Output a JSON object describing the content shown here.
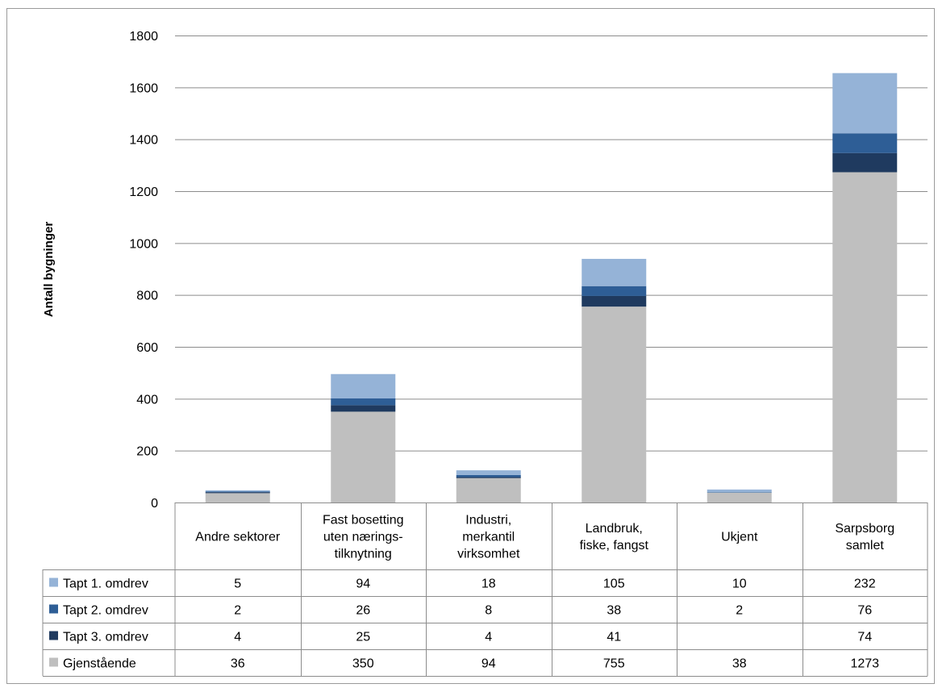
{
  "chart_data": {
    "type": "bar",
    "stacked": true,
    "ylabel": "Antall bygninger",
    "ylim": [
      0,
      1800
    ],
    "yticks": [
      0,
      200,
      400,
      600,
      800,
      1000,
      1200,
      1400,
      1600,
      1800
    ],
    "grid": true,
    "legend_placement": "data-table",
    "categories": [
      [
        "Andre sektorer"
      ],
      [
        "Fast bosetting",
        "uten nærings-",
        "tilknytning"
      ],
      [
        "Industri,",
        "merkantil",
        "virksomhet"
      ],
      [
        "Landbruk,",
        "fiske, fangst"
      ],
      [
        "Ukjent"
      ],
      [
        "Sarpsborg",
        "samlet"
      ]
    ],
    "series": [
      {
        "name": "Gjenstående",
        "color": "#bfbfbf",
        "values": [
          36,
          350,
          94,
          755,
          38,
          1273
        ]
      },
      {
        "name": "Tapt 3. omdrev",
        "color": "#1f3a5f",
        "values": [
          4,
          25,
          4,
          41,
          null,
          74
        ]
      },
      {
        "name": "Tapt 2. omdrev",
        "color": "#2e5e96",
        "values": [
          2,
          26,
          8,
          38,
          2,
          76
        ]
      },
      {
        "name": "Tapt 1. omdrev",
        "color": "#95b3d7",
        "values": [
          5,
          94,
          18,
          105,
          10,
          232
        ]
      }
    ],
    "table_row_order": [
      "Tapt 1. omdrev",
      "Tapt 2. omdrev",
      "Tapt 3. omdrev",
      "Gjenstående"
    ]
  }
}
